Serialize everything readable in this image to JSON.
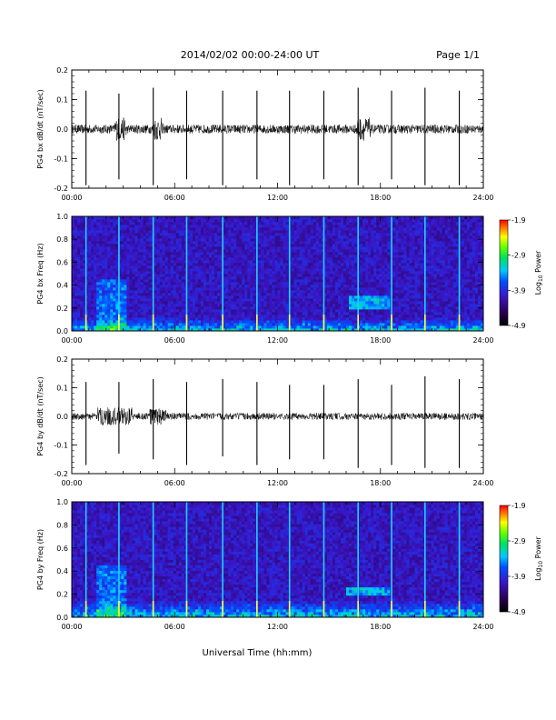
{
  "header": {
    "title": "2014/02/02  00:00-24:00 UT",
    "page": "Page 1/1"
  },
  "footer": {
    "xlabel": "Universal Time (hh:mm)"
  },
  "chart_data": [
    {
      "type": "line",
      "title": "",
      "ylabel": "PG4 bx dB/dt (nT/sec)",
      "xlabel": "",
      "x_range_hours": [
        0,
        24
      ],
      "x_ticks": [
        "00:00",
        "06:00",
        "12:00",
        "18:00",
        "24:00"
      ],
      "ylim": [
        -0.2,
        0.2
      ],
      "y_ticks": [
        "0.2",
        "0.1",
        "0.0",
        "-0.1",
        "-0.2"
      ],
      "series": [
        {
          "background_noise_amplitude": 0.015,
          "spike_times_hours": [
            0.83,
            2.75,
            4.75,
            6.7,
            8.8,
            10.8,
            12.7,
            14.7,
            16.7,
            18.65,
            20.6,
            22.6
          ],
          "spike_values": [
            [
              0.13,
              -0.19
            ],
            [
              0.12,
              -0.17
            ],
            [
              0.14,
              -0.19
            ],
            [
              0.13,
              -0.17
            ],
            [
              0.13,
              -0.19
            ],
            [
              0.13,
              -0.17
            ],
            [
              0.13,
              -0.19
            ],
            [
              0.13,
              -0.17
            ],
            [
              0.14,
              -0.19
            ],
            [
              0.13,
              -0.17
            ],
            [
              0.14,
              -0.19
            ],
            [
              0.13,
              -0.19
            ]
          ],
          "burst_regions_hours": [
            [
              2.5,
              3.2
            ],
            [
              4.7,
              5.3
            ],
            [
              16.6,
              17.4
            ]
          ]
        }
      ]
    },
    {
      "type": "heatmap",
      "title": "",
      "ylabel": "PG4 bx Freq (Hz)",
      "xlabel": "",
      "x_range_hours": [
        0,
        24
      ],
      "x_ticks": [
        "00:00",
        "06:00",
        "12:00",
        "18:00",
        "24:00"
      ],
      "ylim": [
        0.0,
        1.0
      ],
      "y_ticks": [
        "1.0",
        "0.8",
        "0.6",
        "0.4",
        "0.2",
        "0.0"
      ],
      "colorbar": {
        "label": "Log10 Power",
        "label_base": "Log",
        "label_sub": "10",
        "label_rest": " Power",
        "range": [
          -4.9,
          -1.9
        ],
        "ticks": [
          "-1.9",
          "-2.9",
          "-3.9",
          "-4.9"
        ]
      },
      "vertical_lines_hours": [
        0.83,
        2.75,
        4.75,
        6.7,
        8.8,
        10.8,
        12.7,
        14.7,
        16.7,
        18.65,
        20.6,
        22.6
      ],
      "enhanced_low_freq_band_hz": [
        0.0,
        0.12
      ],
      "enhanced_feature": {
        "time_hours": [
          16.2,
          18.5
        ],
        "freq_hz": [
          0.2,
          0.3
        ]
      }
    },
    {
      "type": "line",
      "title": "",
      "ylabel": "PG4 by dB/dt (nT/sec)",
      "xlabel": "",
      "x_range_hours": [
        0,
        24
      ],
      "x_ticks": [
        "00:00",
        "06:00",
        "12:00",
        "18:00",
        "24:00"
      ],
      "ylim": [
        -0.2,
        0.2
      ],
      "y_ticks": [
        "0.2",
        "0.1",
        "0.0",
        "-0.1",
        "-0.2"
      ],
      "series": [
        {
          "background_noise_amplitude": 0.012,
          "spike_times_hours": [
            0.83,
            2.75,
            4.75,
            6.7,
            8.8,
            10.8,
            12.7,
            14.7,
            16.7,
            18.65,
            20.6,
            22.6
          ],
          "spike_values": [
            [
              0.12,
              -0.17
            ],
            [
              0.12,
              -0.13
            ],
            [
              0.13,
              -0.15
            ],
            [
              0.12,
              -0.17
            ],
            [
              0.13,
              -0.14
            ],
            [
              0.12,
              -0.17
            ],
            [
              0.11,
              -0.15
            ],
            [
              0.11,
              -0.15
            ],
            [
              0.13,
              -0.18
            ],
            [
              0.11,
              -0.17
            ],
            [
              0.14,
              -0.18
            ],
            [
              0.13,
              -0.18
            ]
          ],
          "burst_regions_hours": [
            [
              1.5,
              3.5
            ],
            [
              4.5,
              5.5
            ]
          ]
        }
      ]
    },
    {
      "type": "heatmap",
      "title": "",
      "ylabel": "PG4 by Freq (Hz)",
      "xlabel": "",
      "x_range_hours": [
        0,
        24
      ],
      "x_ticks": [
        "00:00",
        "06:00",
        "12:00",
        "18:00",
        "24:00"
      ],
      "ylim": [
        0.0,
        1.0
      ],
      "y_ticks": [
        "1.0",
        "0.8",
        "0.6",
        "0.4",
        "0.2",
        "0.0"
      ],
      "colorbar": {
        "label": "Log10 Power",
        "label_base": "Log",
        "label_sub": "10",
        "label_rest": " Power",
        "range": [
          -4.9,
          -1.9
        ],
        "ticks": [
          "-1.9",
          "-2.9",
          "-3.9",
          "-4.9"
        ]
      },
      "vertical_lines_hours": [
        0.83,
        2.75,
        4.75,
        6.7,
        8.8,
        10.8,
        12.7,
        14.7,
        16.7,
        18.65,
        20.6,
        22.6
      ],
      "enhanced_low_freq_band_hz": [
        0.0,
        0.15
      ],
      "enhanced_feature": {
        "time_hours": [
          16.0,
          18.5
        ],
        "freq_hz": [
          0.18,
          0.26
        ]
      }
    }
  ]
}
